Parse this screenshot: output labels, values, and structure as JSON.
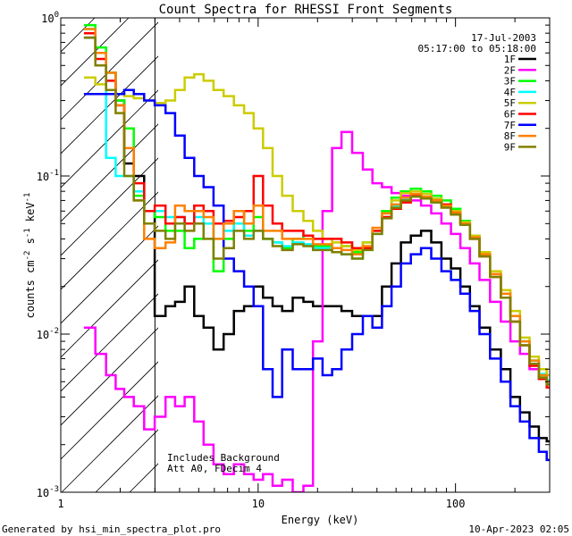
{
  "chart_data": {
    "type": "line",
    "title": "Count Spectra for RHESSI Front Segments",
    "xlabel": "Energy (keV)",
    "ylabel_parts": {
      "main": "counts cm",
      "exp1": "-2",
      "mid": " s",
      "exp2": "-1",
      "tail": " keV",
      "exp3": "-1"
    },
    "xscale": "log",
    "yscale": "log",
    "xlim": [
      1,
      300
    ],
    "ylim": [
      0.001,
      1
    ],
    "x_ticks": [
      {
        "value": 1,
        "label": "1"
      },
      {
        "value": 10,
        "label": "10"
      },
      {
        "value": 100,
        "label": "100"
      }
    ],
    "y_ticks": [
      {
        "value": 1,
        "base": "10",
        "exp": "0"
      },
      {
        "value": 0.1,
        "base": "10",
        "exp": "-1"
      },
      {
        "value": 0.01,
        "base": "10",
        "exp": "-2"
      },
      {
        "value": 0.001,
        "base": "10",
        "exp": "-3"
      }
    ],
    "date": "17-Jul-2003",
    "time_range": "05:17:00 to 05:18:00",
    "annotation_lines": [
      "Includes Background",
      "Att A0, FDecim 4"
    ],
    "hatched_region_xmax": 3,
    "legend_position": "top-right",
    "x_energy": [
      1.4,
      1.6,
      1.8,
      2.0,
      2.2,
      2.5,
      2.8,
      3.2,
      3.6,
      4.0,
      4.5,
      5.0,
      5.6,
      6.3,
      7.1,
      8.0,
      9.0,
      10.0,
      11.2,
      12.5,
      14,
      16,
      18,
      20,
      22.5,
      25,
      28,
      32,
      36,
      40,
      45,
      50,
      56,
      63,
      71,
      80,
      90,
      100,
      112,
      125,
      140,
      160,
      180,
      200,
      225,
      250,
      280,
      300
    ],
    "series": [
      {
        "name": "1F",
        "color": "#000000",
        "values": [
          0.75,
          0.6,
          0.45,
          0.3,
          0.12,
          0.1,
          0.06,
          0.013,
          0.015,
          0.016,
          0.02,
          0.013,
          0.011,
          0.008,
          0.01,
          0.014,
          0.015,
          0.02,
          0.017,
          0.015,
          0.014,
          0.017,
          0.016,
          0.015,
          0.015,
          0.015,
          0.014,
          0.013,
          0.013,
          0.013,
          0.02,
          0.028,
          0.038,
          0.042,
          0.045,
          0.038,
          0.03,
          0.026,
          0.02,
          0.015,
          0.011,
          0.008,
          0.006,
          0.004,
          0.0032,
          0.0026,
          0.0022,
          0.0021
        ]
      },
      {
        "name": "2F",
        "color": "#ff00ff",
        "values": [
          0.011,
          0.0075,
          0.0055,
          0.0045,
          0.004,
          0.0035,
          0.0025,
          0.003,
          0.004,
          0.0035,
          0.004,
          0.0028,
          0.002,
          0.0015,
          0.0013,
          0.0015,
          0.0013,
          0.0012,
          0.0013,
          0.0011,
          0.0012,
          0.001,
          0.0011,
          0.009,
          0.06,
          0.15,
          0.19,
          0.14,
          0.11,
          0.09,
          0.085,
          0.078,
          0.075,
          0.07,
          0.065,
          0.058,
          0.05,
          0.043,
          0.035,
          0.028,
          0.022,
          0.016,
          0.012,
          0.009,
          0.0075,
          0.006,
          0.0053,
          0.0048
        ]
      },
      {
        "name": "3F",
        "color": "#00ff00",
        "values": [
          0.9,
          0.65,
          0.45,
          0.3,
          0.2,
          0.075,
          0.06,
          0.055,
          0.045,
          0.045,
          0.035,
          0.04,
          0.05,
          0.025,
          0.04,
          0.06,
          0.045,
          0.055,
          0.04,
          0.038,
          0.035,
          0.04,
          0.042,
          0.036,
          0.036,
          0.035,
          0.036,
          0.033,
          0.038,
          0.045,
          0.06,
          0.073,
          0.08,
          0.083,
          0.08,
          0.075,
          0.07,
          0.062,
          0.052,
          0.042,
          0.032,
          0.024,
          0.018,
          0.013,
          0.009,
          0.0068,
          0.0055,
          0.005
        ]
      },
      {
        "name": "4F",
        "color": "#00ffff",
        "values": [
          0.85,
          0.6,
          0.13,
          0.1,
          0.1,
          0.08,
          0.06,
          0.06,
          0.055,
          0.055,
          0.05,
          0.055,
          0.05,
          0.04,
          0.045,
          0.05,
          0.042,
          0.045,
          0.04,
          0.038,
          0.036,
          0.038,
          0.037,
          0.035,
          0.035,
          0.033,
          0.032,
          0.03,
          0.035,
          0.043,
          0.055,
          0.065,
          0.072,
          0.075,
          0.072,
          0.068,
          0.064,
          0.058,
          0.05,
          0.041,
          0.032,
          0.024,
          0.018,
          0.013,
          0.009,
          0.0068,
          0.0056,
          0.0051
        ]
      },
      {
        "name": "5F",
        "color": "#cccc00",
        "values": [
          0.42,
          0.38,
          0.35,
          0.33,
          0.32,
          0.31,
          0.3,
          0.29,
          0.3,
          0.35,
          0.42,
          0.44,
          0.4,
          0.35,
          0.32,
          0.28,
          0.25,
          0.2,
          0.15,
          0.1,
          0.075,
          0.06,
          0.052,
          0.045,
          0.04,
          0.038,
          0.036,
          0.034,
          0.038,
          0.045,
          0.058,
          0.07,
          0.078,
          0.08,
          0.077,
          0.072,
          0.066,
          0.06,
          0.051,
          0.042,
          0.033,
          0.025,
          0.019,
          0.014,
          0.0095,
          0.0072,
          0.006,
          0.0055
        ]
      },
      {
        "name": "6F",
        "color": "#ff0000",
        "values": [
          0.8,
          0.55,
          0.4,
          0.28,
          0.15,
          0.09,
          0.06,
          0.065,
          0.05,
          0.055,
          0.05,
          0.065,
          0.06,
          0.05,
          0.052,
          0.055,
          0.06,
          0.1,
          0.065,
          0.05,
          0.045,
          0.045,
          0.042,
          0.04,
          0.04,
          0.04,
          0.038,
          0.035,
          0.035,
          0.045,
          0.055,
          0.062,
          0.068,
          0.075,
          0.072,
          0.07,
          0.066,
          0.058,
          0.05,
          0.04,
          0.031,
          0.023,
          0.017,
          0.012,
          0.0085,
          0.0063,
          0.0052,
          0.0046
        ]
      },
      {
        "name": "7F",
        "color": "#0000ff",
        "values": [
          0.33,
          0.33,
          0.33,
          0.33,
          0.35,
          0.33,
          0.3,
          0.28,
          0.25,
          0.18,
          0.13,
          0.1,
          0.085,
          0.065,
          0.03,
          0.025,
          0.02,
          0.015,
          0.006,
          0.004,
          0.008,
          0.006,
          0.006,
          0.007,
          0.0055,
          0.006,
          0.008,
          0.01,
          0.013,
          0.011,
          0.015,
          0.02,
          0.028,
          0.032,
          0.035,
          0.03,
          0.025,
          0.022,
          0.018,
          0.014,
          0.01,
          0.007,
          0.005,
          0.0035,
          0.0028,
          0.0022,
          0.0018,
          0.0016
        ]
      },
      {
        "name": "8F",
        "color": "#ff8000",
        "values": [
          0.85,
          0.6,
          0.45,
          0.28,
          0.15,
          0.07,
          0.04,
          0.035,
          0.038,
          0.065,
          0.06,
          0.06,
          0.055,
          0.04,
          0.05,
          0.06,
          0.05,
          0.065,
          0.045,
          0.045,
          0.04,
          0.04,
          0.04,
          0.037,
          0.037,
          0.035,
          0.034,
          0.032,
          0.036,
          0.047,
          0.058,
          0.066,
          0.073,
          0.077,
          0.074,
          0.07,
          0.065,
          0.059,
          0.05,
          0.041,
          0.032,
          0.024,
          0.018,
          0.013,
          0.009,
          0.0068,
          0.0055,
          0.005
        ]
      },
      {
        "name": "9F",
        "color": "#808000",
        "values": [
          0.75,
          0.5,
          0.35,
          0.25,
          0.1,
          0.07,
          0.05,
          0.045,
          0.04,
          0.05,
          0.045,
          0.05,
          0.04,
          0.03,
          0.035,
          0.045,
          0.04,
          0.045,
          0.04,
          0.036,
          0.034,
          0.037,
          0.036,
          0.034,
          0.034,
          0.033,
          0.032,
          0.03,
          0.034,
          0.043,
          0.054,
          0.063,
          0.07,
          0.074,
          0.072,
          0.068,
          0.063,
          0.057,
          0.049,
          0.04,
          0.031,
          0.023,
          0.017,
          0.012,
          0.0085,
          0.0065,
          0.0053,
          0.0048
        ]
      }
    ]
  },
  "footer": {
    "generated_by": "Generated by hsi_min_spectra_plot.pro",
    "timestamp": "10-Apr-2023 02:05"
  }
}
